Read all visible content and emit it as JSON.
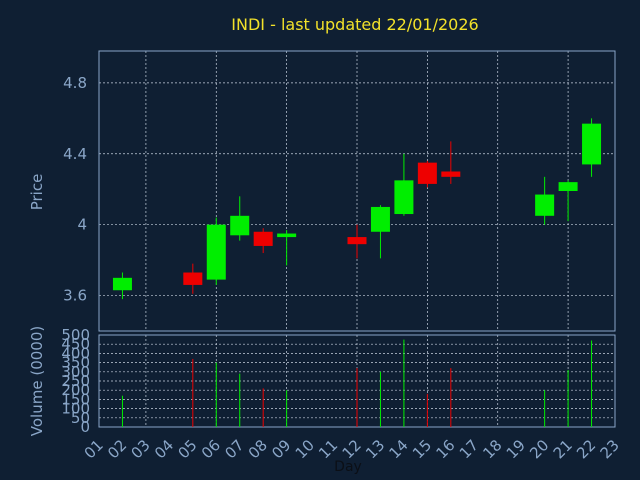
{
  "chart_data": {
    "type": "candlestick",
    "title": "INDI - last updated 22/01/2026",
    "xlabel": "Day",
    "price_ylabel": "Price",
    "volume_ylabel": "Volume (0000)",
    "x_ticks": [
      "01",
      "02",
      "03",
      "04",
      "05",
      "06",
      "07",
      "08",
      "09",
      "10",
      "11",
      "12",
      "13",
      "14",
      "15",
      "16",
      "17",
      "18",
      "19",
      "20",
      "21",
      "22",
      "23"
    ],
    "price_ylim": [
      3.4,
      4.98
    ],
    "price_ticks": [
      {
        "value": 3.6,
        "label": "3.6"
      },
      {
        "value": 4.0,
        "label": "4"
      },
      {
        "value": 4.4,
        "label": "4.4"
      },
      {
        "value": 4.8,
        "label": "4.8"
      }
    ],
    "volume_ylim": [
      0,
      500
    ],
    "volume_ticks": [
      0,
      50,
      100,
      150,
      200,
      250,
      300,
      350,
      400,
      450,
      500
    ],
    "grid": true,
    "colors": {
      "background": "#0f1f33",
      "plot_border": "#8aa6c8",
      "grid": "#c8d2e0",
      "up": "#00ee00",
      "down": "#ee0000",
      "title": "#f2e12a",
      "axis_text": "#8aa6c8"
    },
    "candles": [
      {
        "day": "02",
        "open": 3.63,
        "high": 3.73,
        "low": 3.58,
        "close": 3.7,
        "volume": 170
      },
      {
        "day": "05",
        "open": 3.73,
        "high": 3.78,
        "low": 3.61,
        "close": 3.66,
        "volume": 370
      },
      {
        "day": "06",
        "open": 3.69,
        "high": 4.04,
        "low": 3.66,
        "close": 4.0,
        "volume": 350
      },
      {
        "day": "07",
        "open": 3.94,
        "high": 4.16,
        "low": 3.91,
        "close": 4.05,
        "volume": 290
      },
      {
        "day": "08",
        "open": 3.96,
        "high": 3.98,
        "low": 3.84,
        "close": 3.88,
        "volume": 210
      },
      {
        "day": "09",
        "open": 3.93,
        "high": 3.97,
        "low": 3.77,
        "close": 3.95,
        "volume": 200
      },
      {
        "day": "12",
        "open": 3.93,
        "high": 4.0,
        "low": 3.81,
        "close": 3.89,
        "volume": 320
      },
      {
        "day": "13",
        "open": 3.96,
        "high": 4.11,
        "low": 3.81,
        "close": 4.1,
        "volume": 300
      },
      {
        "day": "14",
        "open": 4.06,
        "high": 4.4,
        "low": 4.05,
        "close": 4.25,
        "volume": 475
      },
      {
        "day": "15",
        "open": 4.35,
        "high": 4.36,
        "low": 4.21,
        "close": 4.23,
        "volume": 180
      },
      {
        "day": "16",
        "open": 4.3,
        "high": 4.47,
        "low": 4.23,
        "close": 4.27,
        "volume": 320
      },
      {
        "day": "20",
        "open": 4.05,
        "high": 4.27,
        "low": 4.0,
        "close": 4.17,
        "volume": 200
      },
      {
        "day": "21",
        "open": 4.19,
        "high": 4.25,
        "low": 4.02,
        "close": 4.24,
        "volume": 310
      },
      {
        "day": "22",
        "open": 4.34,
        "high": 4.6,
        "low": 4.27,
        "close": 4.57,
        "volume": 470
      }
    ]
  }
}
